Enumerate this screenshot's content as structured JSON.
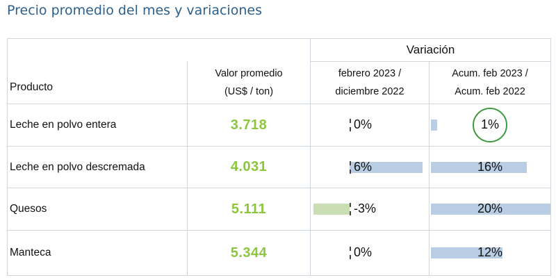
{
  "title": "Precio promedio del mes y variaciones",
  "header": {
    "variacion": "Variación",
    "producto": "Producto",
    "valor_line1": "Valor promedio",
    "valor_line2": "(US$ / ton)",
    "mensual_line1": "febrero 2023 /",
    "mensual_line2": "diciembre 2022",
    "acum_line1": "Acum. feb 2023 /",
    "acum_line2": "Acum. feb 2022"
  },
  "colors": {
    "title": "#2b5f8c",
    "value": "#8cc63f",
    "bar_positive": "#b9cde4",
    "bar_negative": "#c9dfb3",
    "highlight_circle": "#3e9a3e"
  },
  "rows": [
    {
      "producto": "Leche en polvo entera",
      "valor": "3.718",
      "var_mensual": "0%",
      "var_mensual_value": 0,
      "var_acum": "1%",
      "var_acum_value": 1,
      "highlight": true
    },
    {
      "producto": "Leche en polvo descremada",
      "valor": "4.031",
      "var_mensual": "6%",
      "var_mensual_value": 6,
      "var_acum": "16%",
      "var_acum_value": 16,
      "highlight": false
    },
    {
      "producto": "Quesos",
      "valor": "5.111",
      "var_mensual": "-3%",
      "var_mensual_value": -3,
      "var_acum": "20%",
      "var_acum_value": 20,
      "highlight": false
    },
    {
      "producto": "Manteca",
      "valor": "5.344",
      "var_mensual": "0%",
      "var_mensual_value": 0,
      "var_acum": "12%",
      "var_acum_value": 12,
      "highlight": false
    }
  ]
}
